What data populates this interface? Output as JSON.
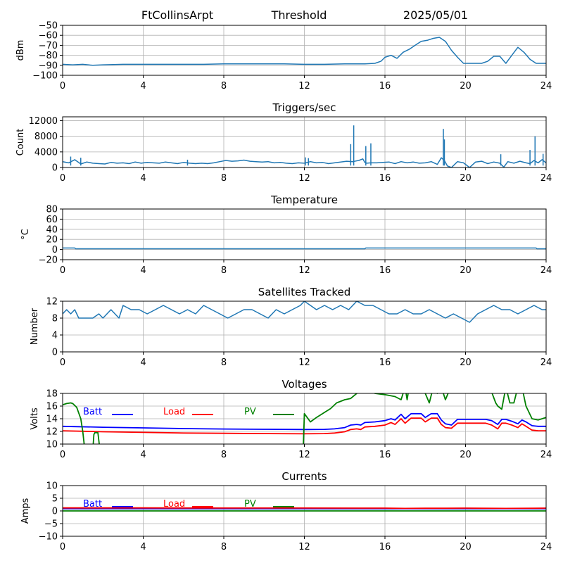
{
  "header": {
    "station": "FtCollinsArpt",
    "mode": "Threshold",
    "date": "2025/05/01"
  },
  "colors": {
    "series_default": "#1f77b4",
    "batt": "#0000ff",
    "load": "#ff0000",
    "pv": "#008000",
    "grid": "#b0b0b0",
    "axes": "#000000"
  },
  "chart_data": [
    {
      "id": "threshold",
      "type": "line",
      "title": "",
      "xlabel": "",
      "ylabel": "dBm",
      "xlim": [
        0,
        24
      ],
      "ylim": [
        -100,
        -50
      ],
      "xticks": [
        0,
        4,
        8,
        12,
        16,
        20,
        24
      ],
      "yticks": [
        -100,
        -90,
        -80,
        -70,
        -60,
        -50
      ],
      "grid": true,
      "series": [
        {
          "color": "series_default",
          "x": [
            0,
            0.5,
            1,
            1.5,
            2,
            3,
            4,
            5,
            6,
            7,
            8,
            9,
            10,
            11,
            12,
            13,
            14,
            15,
            15.5,
            15.8,
            16,
            16.3,
            16.6,
            16.9,
            17.2,
            17.5,
            17.8,
            18.1,
            18.4,
            18.7,
            19,
            19.3,
            19.6,
            19.9,
            20.2,
            20.5,
            20.8,
            21.1,
            21.4,
            21.7,
            22,
            22.3,
            22.6,
            22.9,
            23.2,
            23.5,
            23.8,
            24
          ],
          "y": [
            -89,
            -89.5,
            -89,
            -90,
            -89.5,
            -89,
            -89,
            -89,
            -89,
            -89,
            -88.5,
            -88.5,
            -88.5,
            -88.5,
            -89,
            -89,
            -88.5,
            -88.5,
            -88,
            -86,
            -82,
            -80,
            -83,
            -77,
            -74,
            -70,
            -66,
            -65,
            -63,
            -62,
            -66,
            -75,
            -82,
            -88,
            -88,
            -88,
            -88,
            -86,
            -81,
            -81,
            -88,
            -80,
            -72,
            -77,
            -84,
            -88,
            -88,
            -88
          ]
        }
      ]
    },
    {
      "id": "triggers",
      "type": "line",
      "title": "Triggers/sec",
      "xlabel": "",
      "ylabel": "Count",
      "xlim": [
        0,
        24
      ],
      "ylim": [
        0,
        13000
      ],
      "xticks": [
        0,
        4,
        8,
        12,
        16,
        20,
        24
      ],
      "yticks": [
        0,
        4000,
        8000,
        12000
      ],
      "grid": true,
      "series": [
        {
          "color": "series_default",
          "x": [
            0,
            0.3,
            0.6,
            0.9,
            1.2,
            1.5,
            1.8,
            2.1,
            2.4,
            2.7,
            3,
            3.3,
            3.6,
            3.9,
            4.2,
            4.5,
            4.8,
            5.1,
            5.4,
            5.7,
            6,
            6.3,
            6.6,
            6.9,
            7.2,
            7.5,
            7.8,
            8.1,
            8.4,
            8.7,
            9,
            9.3,
            9.6,
            9.9,
            10.2,
            10.5,
            10.8,
            11.1,
            11.4,
            11.7,
            12,
            12.3,
            12.6,
            12.9,
            13.2,
            13.5,
            13.8,
            14.1,
            14.4,
            14.7,
            14.9,
            15,
            15.1,
            15.3,
            15.6,
            15.9,
            16.2,
            16.5,
            16.8,
            17.1,
            17.4,
            17.7,
            18,
            18.3,
            18.6,
            18.8,
            18.95,
            19.1,
            19.3,
            19.6,
            19.9,
            20.2,
            20.5,
            20.8,
            21.1,
            21.4,
            21.7,
            21.9,
            22.1,
            22.4,
            22.7,
            23,
            23.2,
            23.4,
            23.6,
            23.8,
            24
          ],
          "y": [
            1500,
            1200,
            2000,
            900,
            1400,
            1100,
            1000,
            900,
            1300,
            1100,
            1200,
            1000,
            1400,
            1100,
            1300,
            1200,
            1100,
            1400,
            1200,
            1000,
            1300,
            1100,
            1000,
            1100,
            1000,
            1200,
            1500,
            1800,
            1600,
            1700,
            1900,
            1600,
            1500,
            1400,
            1500,
            1200,
            1300,
            1100,
            1000,
            1200,
            1100,
            1500,
            1200,
            1300,
            1000,
            1200,
            1400,
            1600,
            1500,
            1800,
            2200,
            1300,
            1100,
            1200,
            1200,
            1300,
            1400,
            1000,
            1500,
            1200,
            1400,
            1100,
            1200,
            1500,
            800,
            2500,
            1800,
            400,
            0,
            1500,
            1200,
            0,
            1400,
            1600,
            1000,
            1400,
            1100,
            100,
            1500,
            1100,
            1600,
            1200,
            1000,
            1800,
            1200,
            2000,
            1200
          ]
        }
      ],
      "spikes": [
        {
          "x": 0.4,
          "y": 2800
        },
        {
          "x": 0.9,
          "y": 2500
        },
        {
          "x": 6.2,
          "y": 2000
        },
        {
          "x": 12.05,
          "y": 2600
        },
        {
          "x": 12.2,
          "y": 2400
        },
        {
          "x": 14.3,
          "y": 6000
        },
        {
          "x": 14.45,
          "y": 10800
        },
        {
          "x": 15.05,
          "y": 5500
        },
        {
          "x": 15.3,
          "y": 6200
        },
        {
          "x": 18.9,
          "y": 9900
        },
        {
          "x": 18.95,
          "y": 7200
        },
        {
          "x": 21.75,
          "y": 3400
        },
        {
          "x": 23.2,
          "y": 4500
        },
        {
          "x": 23.45,
          "y": 8000
        },
        {
          "x": 23.85,
          "y": 3500
        }
      ]
    },
    {
      "id": "temperature",
      "type": "line",
      "title": "Temperature",
      "xlabel": "",
      "ylabel": "°C",
      "xlim": [
        0,
        24
      ],
      "ylim": [
        -20,
        80
      ],
      "xticks": [
        0,
        4,
        8,
        12,
        16,
        20,
        24
      ],
      "yticks": [
        -20,
        0,
        20,
        40,
        60,
        80
      ],
      "grid": true,
      "series": [
        {
          "color": "series_default",
          "x": [
            0,
            0.6,
            0.65,
            15,
            15.05,
            23.5,
            23.55,
            24
          ],
          "y": [
            3,
            3,
            1.5,
            1.5,
            3,
            3,
            1.5,
            1.5
          ]
        }
      ]
    },
    {
      "id": "satellites",
      "type": "line",
      "title": "Satellites Tracked",
      "xlabel": "",
      "ylabel": "Number",
      "xlim": [
        0,
        24
      ],
      "ylim": [
        0,
        12
      ],
      "xticks": [
        0,
        4,
        8,
        12,
        16,
        20,
        24
      ],
      "yticks": [
        0,
        4,
        8,
        12
      ],
      "grid": true,
      "series": [
        {
          "color": "series_default",
          "x": [
            0,
            0.2,
            0.4,
            0.6,
            0.8,
            1.5,
            1.8,
            2,
            2.2,
            2.4,
            2.6,
            2.8,
            3,
            3.4,
            3.8,
            4.2,
            4.6,
            5,
            5.4,
            5.8,
            6.2,
            6.6,
            7,
            7.4,
            7.8,
            8.2,
            8.6,
            9,
            9.4,
            9.8,
            10.2,
            10.6,
            11,
            11.4,
            11.8,
            12,
            12.3,
            12.6,
            13,
            13.4,
            13.8,
            14.2,
            14.6,
            15,
            15.4,
            15.8,
            16.2,
            16.6,
            17,
            17.4,
            17.8,
            18.2,
            18.6,
            19,
            19.4,
            19.8,
            20.2,
            20.6,
            21,
            21.4,
            21.8,
            22.2,
            22.6,
            23,
            23.4,
            23.8,
            24
          ],
          "y": [
            9,
            10,
            9,
            10,
            8,
            8,
            9,
            8,
            9,
            10,
            9,
            8,
            11,
            10,
            10,
            9,
            10,
            11,
            10,
            9,
            10,
            9,
            11,
            10,
            9,
            8,
            9,
            10,
            10,
            9,
            8,
            10,
            9,
            10,
            11,
            12,
            11,
            10,
            11,
            10,
            11,
            10,
            12,
            11,
            11,
            10,
            9,
            9,
            10,
            9,
            9,
            10,
            9,
            8,
            9,
            8,
            7,
            9,
            10,
            11,
            10,
            10,
            9,
            10,
            11,
            10,
            10
          ]
        }
      ]
    },
    {
      "id": "voltages",
      "type": "line",
      "title": "Voltages",
      "xlabel": "",
      "ylabel": "Volts",
      "xlim": [
        0,
        24
      ],
      "ylim": [
        10,
        18
      ],
      "xticks": [
        0,
        4,
        8,
        12,
        16,
        20,
        24
      ],
      "yticks": [
        10,
        12,
        14,
        16,
        18
      ],
      "grid": true,
      "legend": "top-left-inline",
      "series": [
        {
          "name": "Batt",
          "color": "batt",
          "x": [
            0,
            2,
            4,
            6,
            8,
            10,
            12,
            13,
            13.5,
            14,
            14.3,
            14.6,
            14.8,
            15,
            15.5,
            16,
            16.3,
            16.5,
            16.8,
            17,
            17.3,
            17.5,
            17.8,
            18,
            18.3,
            18.6,
            18.8,
            19,
            19.3,
            19.6,
            20,
            20.5,
            21,
            21.3,
            21.6,
            21.8,
            22,
            22.3,
            22.6,
            22.8,
            23,
            23.3,
            23.6,
            24
          ],
          "y": [
            12.8,
            12.65,
            12.55,
            12.45,
            12.38,
            12.33,
            12.3,
            12.32,
            12.4,
            12.6,
            13.0,
            13.1,
            13.0,
            13.4,
            13.5,
            13.7,
            14.0,
            13.8,
            14.7,
            14.0,
            14.8,
            14.8,
            14.8,
            14.2,
            14.8,
            14.8,
            13.8,
            13.2,
            13.0,
            13.9,
            13.9,
            13.9,
            13.9,
            13.7,
            13.1,
            13.9,
            13.9,
            13.6,
            13.2,
            13.8,
            13.5,
            12.9,
            12.8,
            12.8
          ]
        },
        {
          "name": "Load",
          "color": "load",
          "x": [
            0,
            2,
            4,
            6,
            8,
            10,
            12,
            13,
            13.5,
            14,
            14.3,
            14.6,
            14.8,
            15,
            15.5,
            16,
            16.3,
            16.5,
            16.8,
            17,
            17.3,
            17.5,
            17.8,
            18,
            18.3,
            18.6,
            18.8,
            19,
            19.3,
            19.6,
            20,
            20.5,
            21,
            21.3,
            21.6,
            21.8,
            22,
            22.3,
            22.6,
            22.8,
            23,
            23.3,
            23.6,
            24
          ],
          "y": [
            12.1,
            11.95,
            11.85,
            11.75,
            11.7,
            11.65,
            11.62,
            11.65,
            11.75,
            11.95,
            12.3,
            12.4,
            12.3,
            12.7,
            12.8,
            13.0,
            13.4,
            13.1,
            14.0,
            13.3,
            14.1,
            14.1,
            14.1,
            13.5,
            14.1,
            14.1,
            13.1,
            12.6,
            12.5,
            13.3,
            13.3,
            13.3,
            13.3,
            13.0,
            12.4,
            13.3,
            13.3,
            13.0,
            12.6,
            13.2,
            12.8,
            12.2,
            12.1,
            12.1
          ]
        },
        {
          "name": "PV",
          "color": "pv",
          "x": [
            0,
            0.2,
            0.4,
            0.5,
            0.7,
            0.9,
            1.0,
            1.05,
            1.1,
            1.5,
            1.55,
            1.6,
            1.75,
            1.8,
            1.85,
            11.9,
            11.95,
            12.0,
            12.3,
            12.6,
            13,
            13.3,
            13.6,
            14,
            14.3,
            14.6,
            15,
            15.5,
            16,
            16.5,
            16.8,
            17,
            17.1,
            17.2,
            17.5,
            17.8,
            18,
            18.2,
            18.4,
            18.6,
            18.8,
            19,
            19.2,
            19.6,
            20,
            20.4,
            20.8,
            21.2,
            21.5,
            21.6,
            21.8,
            22,
            22.2,
            22.4,
            22.6,
            22.8,
            23.0,
            23.3,
            23.6,
            23.8,
            24
          ],
          "y": [
            16.2,
            16.4,
            16.5,
            16.4,
            15.8,
            14.0,
            12.0,
            10.5,
            9.0,
            9.0,
            11.5,
            11.8,
            11.8,
            10.5,
            9.0,
            9.0,
            10.0,
            14.8,
            13.5,
            14.2,
            15.0,
            15.6,
            16.5,
            17.0,
            17.2,
            18.0,
            19.0,
            18.0,
            17.8,
            17.5,
            17.0,
            19.0,
            17.0,
            19.0,
            19.0,
            19.0,
            18.0,
            16.5,
            19.0,
            18.0,
            19.0,
            17.0,
            18.5,
            19.0,
            19.0,
            19.0,
            19.0,
            19.0,
            16.5,
            16.0,
            15.5,
            19.0,
            16.5,
            16.5,
            19.0,
            19.0,
            16.0,
            14.0,
            13.8,
            14.0,
            14.2
          ]
        }
      ]
    },
    {
      "id": "currents",
      "type": "line",
      "title": "Currents",
      "xlabel": "",
      "ylabel": "Amps",
      "xlim": [
        0,
        24
      ],
      "ylim": [
        -10,
        10
      ],
      "xticks": [
        0,
        4,
        8,
        12,
        16,
        20,
        24
      ],
      "yticks": [
        -10,
        -5,
        0,
        5,
        10
      ],
      "grid": true,
      "legend": "top-left-inline",
      "series": [
        {
          "name": "Batt",
          "color": "batt",
          "x": [
            0,
            24
          ],
          "y": [
            0.9,
            0.9
          ]
        },
        {
          "name": "Load",
          "color": "load",
          "x": [
            0,
            4,
            8,
            12,
            16,
            17,
            18,
            20,
            22,
            24
          ],
          "y": [
            1.2,
            1.2,
            1.15,
            1.15,
            1.1,
            1.0,
            1.05,
            1.1,
            1.0,
            1.1
          ]
        },
        {
          "name": "PV",
          "color": "pv",
          "x": [
            0,
            24
          ],
          "y": [
            0.0,
            0.0
          ]
        }
      ]
    }
  ]
}
